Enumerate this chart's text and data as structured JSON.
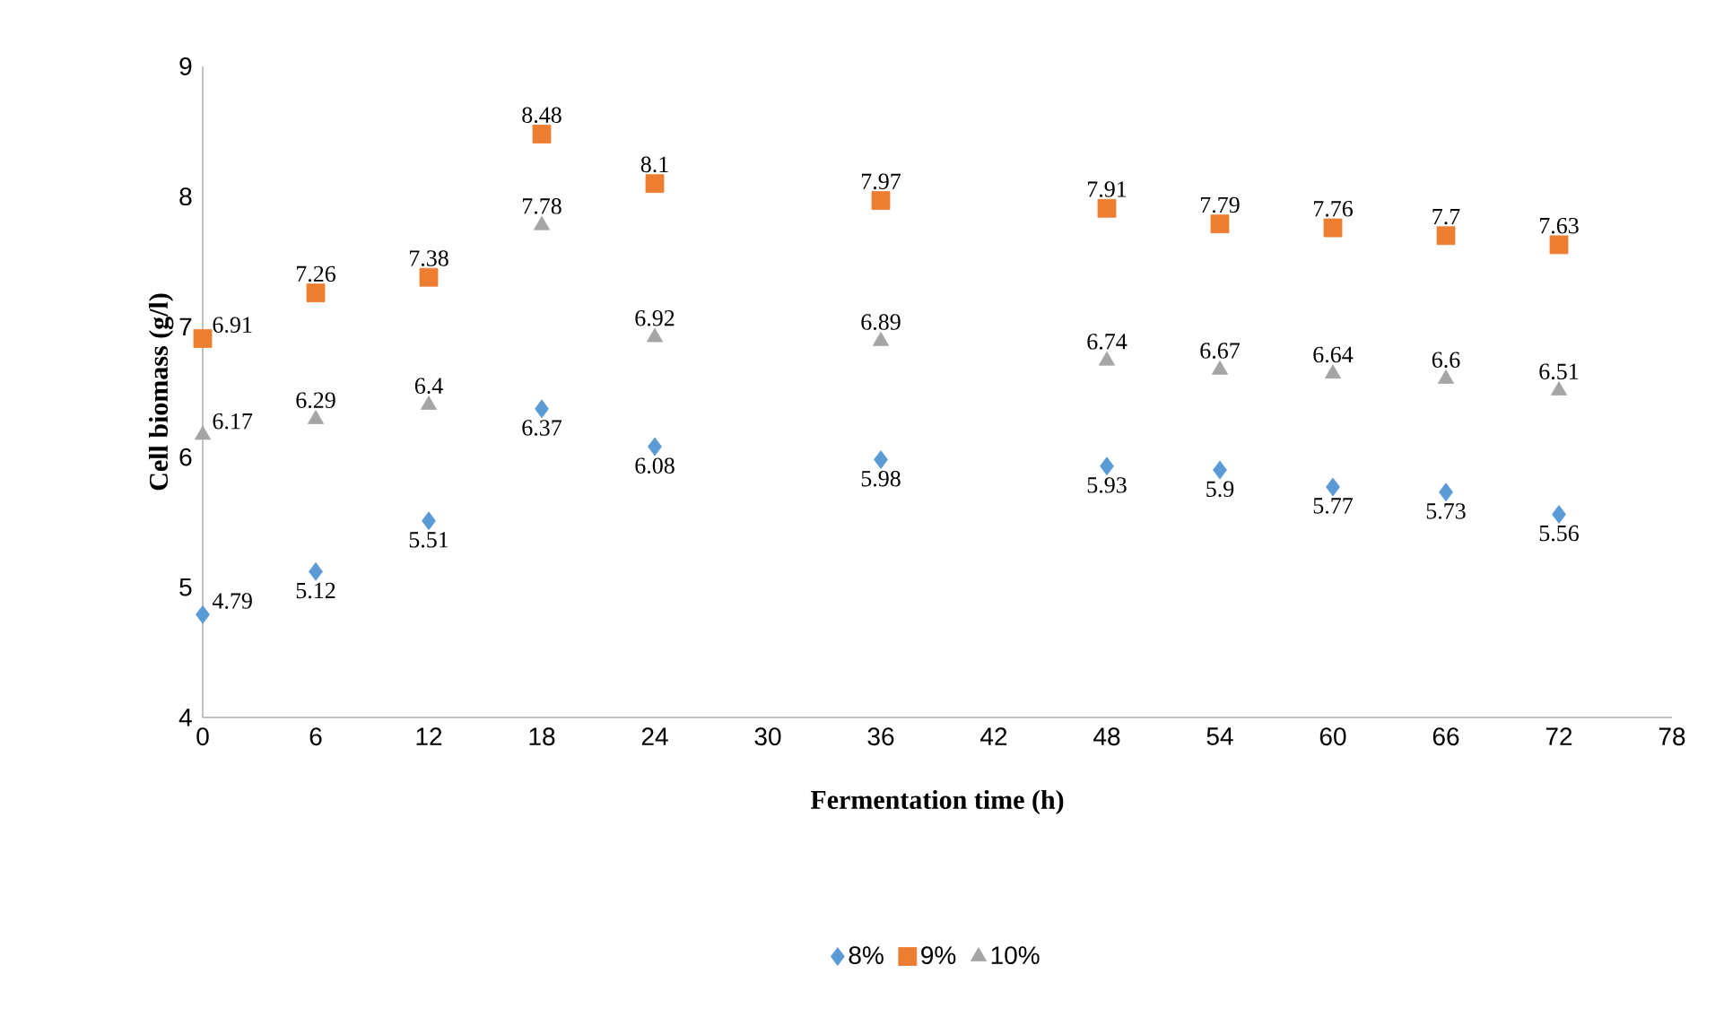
{
  "chart_data": {
    "type": "scatter",
    "xlabel": "Fermentation time (h)",
    "ylabel": "Cell biomass (g/l)",
    "x": [
      0,
      6,
      12,
      18,
      24,
      36,
      48,
      54,
      60,
      66,
      72
    ],
    "series": [
      {
        "name": "8%",
        "color": "#5b9bd5",
        "marker": "diamond",
        "values": [
          4.79,
          5.12,
          5.51,
          6.37,
          6.08,
          5.98,
          5.93,
          5.9,
          5.77,
          5.73,
          5.56
        ]
      },
      {
        "name": "9%",
        "color": "#ed7d31",
        "marker": "square",
        "values": [
          6.91,
          7.26,
          7.38,
          8.48,
          8.1,
          7.97,
          7.91,
          7.79,
          7.76,
          7.7,
          7.63
        ]
      },
      {
        "name": "10%",
        "color": "#a5a5a5",
        "marker": "triangle",
        "values": [
          6.17,
          6.29,
          6.4,
          7.78,
          6.92,
          6.89,
          6.74,
          6.67,
          6.64,
          6.6,
          6.51
        ]
      }
    ],
    "xlim": [
      0,
      78
    ],
    "xticks": [
      0,
      6,
      12,
      18,
      24,
      30,
      36,
      42,
      48,
      54,
      60,
      66,
      72,
      78
    ],
    "ylim": [
      4,
      9
    ],
    "yticks": [
      4,
      5,
      6,
      7,
      8,
      9
    ],
    "grid": false,
    "legend": "bottom",
    "data_labels": true
  }
}
